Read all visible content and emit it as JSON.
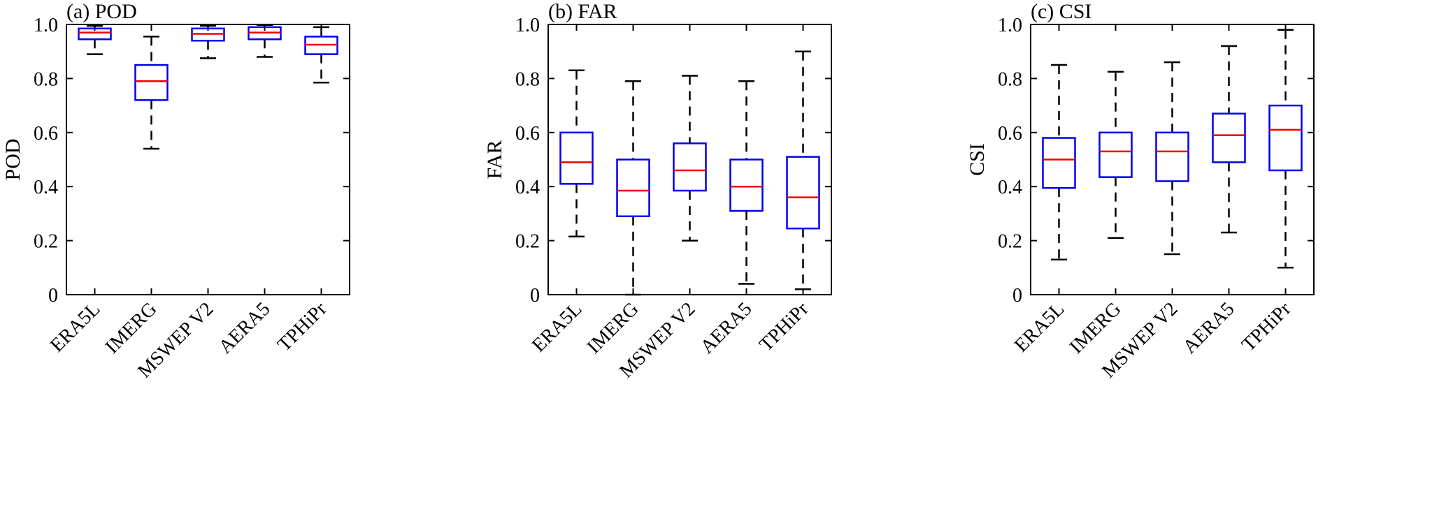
{
  "figure": {
    "background": "#ffffff",
    "panel_count": 3
  },
  "style": {
    "axis_color": "#000000",
    "box_color": "#0000ee",
    "median_color": "#f00000",
    "whisker_color": "#000000",
    "text_color": "#000000"
  },
  "chart_data": [
    {
      "id": "a",
      "type": "box",
      "title": "(a) POD",
      "ylabel": "POD",
      "ylim": [
        0,
        1
      ],
      "yticks": [
        0,
        0.2,
        0.4,
        0.6,
        0.8,
        1.0
      ],
      "ytick_labels": [
        "0",
        "0.2",
        "0.4",
        "0.6",
        "0.8",
        "1.0"
      ],
      "grid": false,
      "categories": [
        "ERA5L",
        "IMERG",
        "MSWEP V2",
        "AERA5",
        "TPHiPr"
      ],
      "boxes": [
        {
          "category": "ERA5L",
          "whisker_low": 0.89,
          "q1": 0.945,
          "median": 0.97,
          "q3": 0.985,
          "whisker_high": 0.995
        },
        {
          "category": "IMERG",
          "whisker_low": 0.54,
          "q1": 0.72,
          "median": 0.79,
          "q3": 0.85,
          "whisker_high": 0.955
        },
        {
          "category": "MSWEP V2",
          "whisker_low": 0.875,
          "q1": 0.94,
          "median": 0.965,
          "q3": 0.985,
          "whisker_high": 0.995
        },
        {
          "category": "AERA5",
          "whisker_low": 0.88,
          "q1": 0.945,
          "median": 0.97,
          "q3": 0.99,
          "whisker_high": 0.998
        },
        {
          "category": "TPHiPr",
          "whisker_low": 0.785,
          "q1": 0.89,
          "median": 0.925,
          "q3": 0.955,
          "whisker_high": 0.99
        }
      ]
    },
    {
      "id": "b",
      "type": "box",
      "title": "(b) FAR",
      "ylabel": "FAR",
      "ylim": [
        0,
        1
      ],
      "yticks": [
        0,
        0.2,
        0.4,
        0.6,
        0.8,
        1.0
      ],
      "ytick_labels": [
        "0",
        "0.2",
        "0.4",
        "0.6",
        "0.8",
        "1.0"
      ],
      "grid": false,
      "categories": [
        "ERA5L",
        "IMERG",
        "MSWEP V2",
        "AERA5",
        "TPHiPr"
      ],
      "boxes": [
        {
          "category": "ERA5L",
          "whisker_low": 0.215,
          "q1": 0.41,
          "median": 0.49,
          "q3": 0.6,
          "whisker_high": 0.83
        },
        {
          "category": "IMERG",
          "whisker_low": 0.0,
          "q1": 0.29,
          "median": 0.385,
          "q3": 0.5,
          "whisker_high": 0.79
        },
        {
          "category": "MSWEP V2",
          "whisker_low": 0.2,
          "q1": 0.385,
          "median": 0.46,
          "q3": 0.56,
          "whisker_high": 0.81
        },
        {
          "category": "AERA5",
          "whisker_low": 0.04,
          "q1": 0.31,
          "median": 0.4,
          "q3": 0.5,
          "whisker_high": 0.79
        },
        {
          "category": "TPHiPr",
          "whisker_low": 0.02,
          "q1": 0.245,
          "median": 0.36,
          "q3": 0.51,
          "whisker_high": 0.9
        }
      ]
    },
    {
      "id": "c",
      "type": "box",
      "title": "(c) CSI",
      "ylabel": "CSI",
      "ylim": [
        0,
        1
      ],
      "yticks": [
        0,
        0.2,
        0.4,
        0.6,
        0.8,
        1.0
      ],
      "ytick_labels": [
        "0",
        "0.2",
        "0.4",
        "0.6",
        "0.8",
        "1.0"
      ],
      "grid": false,
      "categories": [
        "ERA5L",
        "IMERG",
        "MSWEP V2",
        "AERA5",
        "TPHiPr"
      ],
      "boxes": [
        {
          "category": "ERA5L",
          "whisker_low": 0.13,
          "q1": 0.395,
          "median": 0.5,
          "q3": 0.58,
          "whisker_high": 0.85
        },
        {
          "category": "IMERG",
          "whisker_low": 0.21,
          "q1": 0.435,
          "median": 0.53,
          "q3": 0.6,
          "whisker_high": 0.825
        },
        {
          "category": "MSWEP V2",
          "whisker_low": 0.15,
          "q1": 0.42,
          "median": 0.53,
          "q3": 0.6,
          "whisker_high": 0.86
        },
        {
          "category": "AERA5",
          "whisker_low": 0.23,
          "q1": 0.49,
          "median": 0.59,
          "q3": 0.67,
          "whisker_high": 0.92
        },
        {
          "category": "TPHiPr",
          "whisker_low": 0.1,
          "q1": 0.46,
          "median": 0.61,
          "q3": 0.7,
          "whisker_high": 0.98
        }
      ]
    }
  ]
}
